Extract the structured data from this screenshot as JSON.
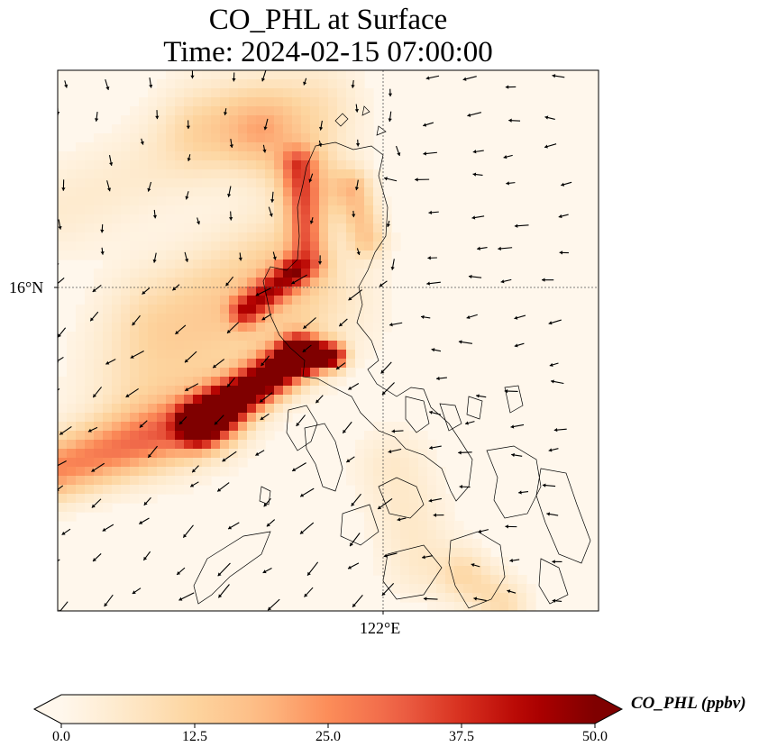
{
  "chart_data": {
    "type": "heatmap",
    "title": "CO_PHL at Surface",
    "subtitle": "Time: 2024-02-15 07:00:00",
    "xlabel": "",
    "ylabel": "",
    "x_ticks": [
      "122°E"
    ],
    "y_ticks": [
      "16°N"
    ],
    "gridlines": [
      "122°E",
      "16°N"
    ],
    "grid": true,
    "colormap": "OrRd",
    "colorbar": {
      "label": "CO_PHL (ppbv)",
      "range": [
        0.0,
        50.0
      ],
      "ticks": [
        "0.0",
        "12.5",
        "25.0",
        "37.5",
        "50.0"
      ],
      "extend": "both",
      "orientation": "horizontal",
      "placement": "bottom"
    },
    "plume": {
      "max_value": 50.0,
      "peak_region": "coast south of 16°N, west of 122°E",
      "direction": "southwest from northern Luzon"
    },
    "overlay": [
      "coastlines",
      "wind vectors"
    ],
    "colors": [
      "#fff7ec",
      "#fee8c8",
      "#fdd49e",
      "#fdbb84",
      "#fc8d59",
      "#ef6548",
      "#d7301f",
      "#b30000",
      "#7f0000"
    ]
  }
}
